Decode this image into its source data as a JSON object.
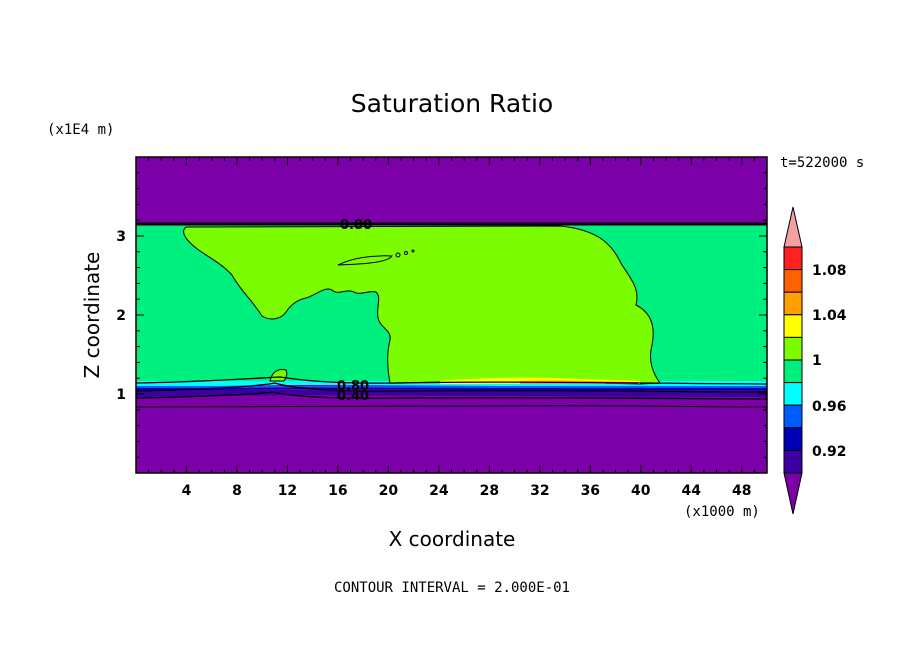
{
  "chart_data": {
    "type": "contour",
    "title": "Saturation Ratio",
    "time_label": "t=522000 s",
    "xlabel": "X coordinate",
    "ylabel": "Z coordinate",
    "x_scale_label": "(x1000 m)",
    "y_scale_label": "(x1E4 m)",
    "xlim": [
      0,
      50
    ],
    "ylim": [
      0,
      4
    ],
    "x_ticks": [
      "4",
      "8",
      "12",
      "16",
      "20",
      "24",
      "28",
      "32",
      "36",
      "40",
      "44",
      "48"
    ],
    "y_ticks": [
      "1",
      "2",
      "3"
    ],
    "contour_interval_text": "CONTOUR INTERVAL = 2.000E-01",
    "contour_labels": [
      "0.80",
      "0.80",
      "0.40"
    ],
    "colorbar": {
      "labels": [
        "1.08",
        "1.04",
        "1",
        "0.96",
        "0.92"
      ],
      "levels": [
        {
          "level": "<0.90",
          "color": "#7c00a8"
        },
        {
          "level": "0.90-0.92",
          "color": "#3c00a0"
        },
        {
          "level": "0.92-0.94",
          "color": "#0000b4"
        },
        {
          "level": "0.94-0.96",
          "color": "#005cff"
        },
        {
          "level": "0.96-0.98",
          "color": "#00ffff"
        },
        {
          "level": "0.98-1.00",
          "color": "#00f080"
        },
        {
          "level": "1.00-1.02",
          "color": "#7cfc00"
        },
        {
          "level": "1.02-1.04",
          "color": "#ffff00"
        },
        {
          "level": "1.04-1.06",
          "color": "#ffa000"
        },
        {
          "level": "1.06-1.08",
          "color": "#ff6000"
        },
        {
          "level": "1.08-1.10",
          "color": "#ff2020"
        },
        {
          "level": ">1.10",
          "color": "#f4a0a0"
        }
      ]
    },
    "regions": [
      {
        "name": "upper dry layer",
        "value_class": "<0.90",
        "z_range": [
          3.15,
          4.0
        ]
      },
      {
        "name": "lower dry layer",
        "value_class": "<0.90",
        "z_range": [
          0,
          0.9
        ]
      },
      {
        "name": "moist layer",
        "value_class": "0.98-1.00",
        "z_range": [
          1.1,
          3.15
        ]
      },
      {
        "name": "supersaturated cloud",
        "value_class": "1.00-1.02",
        "x_range": [
          4,
          41
        ],
        "z_range": [
          1.1,
          3.1
        ]
      }
    ]
  }
}
